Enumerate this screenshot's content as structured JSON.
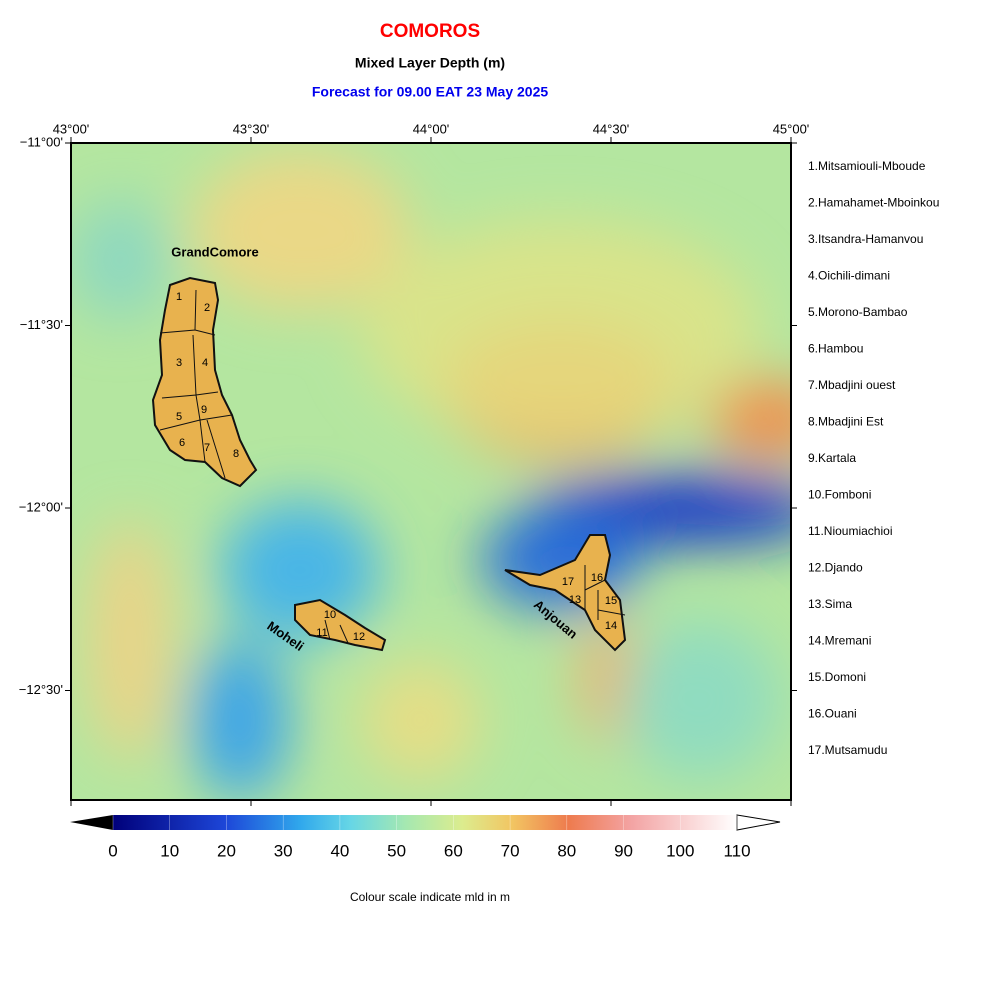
{
  "header": {
    "title": "COMOROS",
    "subtitle": "Mixed Layer Depth (m)",
    "forecast": "Forecast for  09.00 EAT 23 May 2025"
  },
  "map": {
    "xlim": [
      43,
      45
    ],
    "ylim": [
      -12.8,
      -11
    ],
    "xticks": [
      {
        "value": 43,
        "label": "43°00'"
      },
      {
        "value": 43.5,
        "label": "43°30'"
      },
      {
        "value": 44,
        "label": "44°00'"
      },
      {
        "value": 44.5,
        "label": "44°30'"
      },
      {
        "value": 45,
        "label": "45°00'"
      }
    ],
    "yticks": [
      {
        "value": -11,
        "label": "−11°00'"
      },
      {
        "value": -11.5,
        "label": "−11°30'"
      },
      {
        "value": -12,
        "label": "−12°00'"
      },
      {
        "value": -12.5,
        "label": "−12°30'"
      }
    ],
    "islands": [
      "GrandComore",
      "Moheli",
      "Anjouan"
    ],
    "district_numbers": [
      1,
      2,
      3,
      4,
      5,
      6,
      7,
      8,
      9,
      10,
      11,
      12,
      13,
      14,
      15,
      16,
      17
    ]
  },
  "districts": [
    "1.Mitsamiouli-Mboude",
    "2.Hamahamet-Mboinkou",
    "3.Itsandra-Hamanvou",
    "4.Oichili-dimani",
    "5.Morono-Bambao",
    "6.Hambou",
    "7.Mbadjini ouest",
    "8.Mbadjini Est",
    "9.Kartala",
    "10.Fomboni",
    "11.Nioumiachioi",
    "12.Djando",
    "13.Sima",
    "14.Mremani",
    "15.Domoni",
    "16.Ouani",
    "17.Mutsamudu"
  ],
  "colorbar": {
    "lim": [
      0,
      110
    ],
    "ticks": [
      0,
      10,
      20,
      30,
      40,
      50,
      60,
      70,
      80,
      90,
      100,
      110
    ],
    "caption": "Colour scale indicate mld in m"
  }
}
